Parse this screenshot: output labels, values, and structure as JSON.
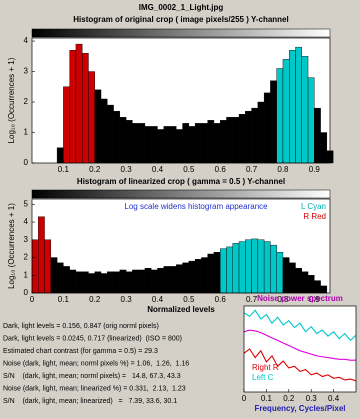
{
  "figure_title": "IMG_0002_1_Light.jpg",
  "info_lines": [
    "Dark, light levels = 0.156, 0.847 (orig norml pixels)",
    "Dark, light levels = 0.0245, 0.717 (linearized)  (ISO = 800)",
    "Estimated chart contrast (for gamma = 0.5) = 29.3",
    "Noise (dark, light, mean; norml pixels %) = 1.06,  1.26,  1.16",
    "S/N    (dark, light, mean; norml pixels) =   14.8, 67.3, 43.3",
    "Noise (dark, light, mean; linearized %) = 0.331,  2.13,  1.23",
    "S/N    (dark, light, mean; linearized)   =   7.39, 33.6, 30.1"
  ],
  "chart_data": [
    {
      "type": "histogram",
      "title": "Histogram of original crop ( image pixels/255 )  Y-channel",
      "ylabel": "Log₁₀ (Occurrences + 1)",
      "bins": [
        0.08,
        0.1,
        0.12,
        0.14,
        0.16,
        0.18,
        0.2,
        0.22,
        0.24,
        0.26,
        0.28,
        0.3,
        0.32,
        0.34,
        0.36,
        0.38,
        0.4,
        0.42,
        0.44,
        0.46,
        0.48,
        0.5,
        0.52,
        0.54,
        0.56,
        0.58,
        0.6,
        0.62,
        0.64,
        0.66,
        0.68,
        0.7,
        0.72,
        0.74,
        0.76,
        0.78,
        0.8,
        0.82,
        0.84,
        0.86,
        0.88,
        0.9,
        0.92,
        0.94,
        0.96
      ],
      "values": [
        0.5,
        2.5,
        3.7,
        3.9,
        3.6,
        3.0,
        2.4,
        2.1,
        1.9,
        1.7,
        1.5,
        1.4,
        1.3,
        1.3,
        1.2,
        1.2,
        1.1,
        1.2,
        1.2,
        1.1,
        1.3,
        1.2,
        1.3,
        1.3,
        1.4,
        1.3,
        1.4,
        1.5,
        1.5,
        1.6,
        1.7,
        1.8,
        2.0,
        2.3,
        2.7,
        3.1,
        3.4,
        3.7,
        3.8,
        3.5,
        2.8,
        1.8,
        1.0,
        0.4
      ],
      "colors": [
        "#000000",
        "#cc0000",
        "#cc0000",
        "#cc0000",
        "#cc0000",
        "#cc0000",
        "#000000",
        "#000000",
        "#000000",
        "#000000",
        "#000000",
        "#000000",
        "#000000",
        "#000000",
        "#000000",
        "#000000",
        "#000000",
        "#000000",
        "#000000",
        "#000000",
        "#000000",
        "#000000",
        "#000000",
        "#000000",
        "#000000",
        "#000000",
        "#000000",
        "#000000",
        "#000000",
        "#000000",
        "#000000",
        "#000000",
        "#000000",
        "#000000",
        "#000000",
        "#00c8c8",
        "#00c8c8",
        "#00c8c8",
        "#00c8c8",
        "#00c8c8",
        "#00c8c8",
        "#000000",
        "#000000",
        "#000000"
      ],
      "xlim": [
        0,
        0.95
      ],
      "xticks": [
        0.1,
        0.2,
        0.3,
        0.4,
        0.5,
        0.6,
        0.7,
        0.8,
        0.9
      ],
      "ylim": [
        0,
        4.1
      ],
      "yticks": [
        0,
        1,
        2,
        3,
        4
      ]
    },
    {
      "type": "histogram",
      "title": "Histogram of linearized crop ( gamma = 0.5 )  Y-channel",
      "ylabel": "Log₁₀ (Occurrences + 1)",
      "xlabel": "Normalized levels",
      "annotation": "Log scale widens histogram appearance",
      "legend_texts": [
        {
          "text": "L Cyan",
          "color": "#00b0b0"
        },
        {
          "text": "R Red",
          "color": "#cc0000"
        }
      ],
      "bins": [
        0,
        0.02,
        0.04,
        0.06,
        0.08,
        0.1,
        0.12,
        0.14,
        0.16,
        0.18,
        0.2,
        0.22,
        0.24,
        0.26,
        0.28,
        0.3,
        0.32,
        0.34,
        0.36,
        0.38,
        0.4,
        0.42,
        0.44,
        0.46,
        0.48,
        0.5,
        0.52,
        0.54,
        0.56,
        0.58,
        0.6,
        0.62,
        0.64,
        0.66,
        0.68,
        0.7,
        0.72,
        0.74,
        0.76,
        0.78,
        0.8,
        0.82,
        0.84,
        0.86,
        0.88,
        0.9,
        0.92,
        0.94
      ],
      "values": [
        3.0,
        4.3,
        3.0,
        2.0,
        1.7,
        1.5,
        1.3,
        1.2,
        1.2,
        1.1,
        1.2,
        1.1,
        1.2,
        1.2,
        1.3,
        1.2,
        1.3,
        1.3,
        1.4,
        1.3,
        1.4,
        1.5,
        1.5,
        1.6,
        1.7,
        1.8,
        1.9,
        2.0,
        2.2,
        2.3,
        2.5,
        2.6,
        2.8,
        2.9,
        3.0,
        3.05,
        3.0,
        2.9,
        2.7,
        2.3,
        2.0,
        1.7,
        1.4,
        1.2,
        1.0,
        0.7,
        0.4
      ],
      "colors": [
        "#cc0000",
        "#cc0000",
        "#cc0000",
        "#000000",
        "#000000",
        "#000000",
        "#000000",
        "#000000",
        "#000000",
        "#000000",
        "#000000",
        "#000000",
        "#000000",
        "#000000",
        "#000000",
        "#000000",
        "#000000",
        "#000000",
        "#000000",
        "#000000",
        "#000000",
        "#000000",
        "#000000",
        "#000000",
        "#000000",
        "#000000",
        "#000000",
        "#000000",
        "#000000",
        "#000000",
        "#00c8c8",
        "#00c8c8",
        "#00c8c8",
        "#00c8c8",
        "#00c8c8",
        "#00c8c8",
        "#00c8c8",
        "#00c8c8",
        "#00c8c8",
        "#00c8c8",
        "#000000",
        "#000000",
        "#000000",
        "#000000",
        "#000000",
        "#000000",
        "#000000"
      ],
      "xlim": [
        0,
        0.95
      ],
      "xticks": [
        0,
        0.1,
        0.2,
        0.3,
        0.4,
        0.5,
        0.6,
        0.7,
        0.8,
        0.9
      ],
      "ylim": [
        0,
        5.3
      ],
      "yticks": [
        0,
        1,
        2,
        3,
        4,
        5
      ]
    },
    {
      "type": "line",
      "title": "Noise power spectrum",
      "xlabel": "Frequency, Cycles/Pixel",
      "x": [
        0,
        0.025,
        0.05,
        0.075,
        0.1,
        0.125,
        0.15,
        0.175,
        0.2,
        0.225,
        0.25,
        0.275,
        0.3,
        0.325,
        0.35,
        0.375,
        0.4,
        0.425,
        0.45,
        0.475,
        0.5
      ],
      "series": [
        {
          "name": "Left C",
          "color": "#00c8c8",
          "values": [
            0.92,
            0.88,
            0.95,
            0.85,
            0.9,
            0.8,
            0.87,
            0.78,
            0.83,
            0.75,
            0.8,
            0.7,
            0.76,
            0.68,
            0.72,
            0.65,
            0.7,
            0.62,
            0.68,
            0.6,
            0.66
          ]
        },
        {
          "color": "#dd00dd",
          "values": [
            0.7,
            0.72,
            0.71,
            0.69,
            0.66,
            0.63,
            0.6,
            0.57,
            0.54,
            0.51,
            0.48,
            0.46,
            0.44,
            0.42,
            0.41,
            0.4,
            0.39,
            0.38,
            0.38,
            0.37,
            0.37
          ]
        },
        {
          "name": "Right R",
          "color": "#dd0000",
          "values": [
            0.45,
            0.5,
            0.4,
            0.48,
            0.35,
            0.42,
            0.3,
            0.36,
            0.28,
            0.3,
            0.24,
            0.26,
            0.2,
            0.22,
            0.18,
            0.2,
            0.16,
            0.17,
            0.14,
            0.15,
            0.13
          ]
        }
      ],
      "xlim": [
        0,
        0.5
      ],
      "xticks": [
        0,
        0.1,
        0.2,
        0.3,
        0.4
      ],
      "ylim": [
        0,
        1
      ]
    }
  ]
}
